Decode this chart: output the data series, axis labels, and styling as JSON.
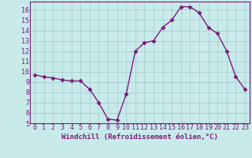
{
  "x": [
    0,
    1,
    2,
    3,
    4,
    5,
    6,
    7,
    8,
    9,
    10,
    11,
    12,
    13,
    14,
    15,
    16,
    17,
    18,
    19,
    20,
    21,
    22,
    23
  ],
  "y": [
    9.7,
    9.5,
    9.4,
    9.2,
    9.1,
    9.1,
    8.3,
    7.0,
    5.4,
    5.3,
    7.8,
    12.0,
    12.8,
    13.0,
    14.3,
    15.0,
    16.3,
    16.3,
    15.7,
    14.3,
    13.7,
    12.0,
    9.5,
    8.3
  ],
  "line_color": "#7b1a7b",
  "marker": "D",
  "marker_size": 2.5,
  "bg_color": "#c8eaea",
  "grid_color": "#a0cccc",
  "xlabel": "Windchill (Refroidissement éolien,°C)",
  "xlim": [
    -0.5,
    23.5
  ],
  "ylim": [
    5,
    16.8
  ],
  "xticks": [
    0,
    1,
    2,
    3,
    4,
    5,
    6,
    7,
    8,
    9,
    10,
    11,
    12,
    13,
    14,
    15,
    16,
    17,
    18,
    19,
    20,
    21,
    22,
    23
  ],
  "yticks": [
    5,
    6,
    7,
    8,
    9,
    10,
    11,
    12,
    13,
    14,
    15,
    16
  ],
  "tick_color": "#7b1a7b",
  "label_color": "#7b1a7b",
  "spine_color": "#7b1a7b",
  "font_size_xlabel": 6.5,
  "font_size_ticks": 6.0,
  "linewidth": 1.0
}
